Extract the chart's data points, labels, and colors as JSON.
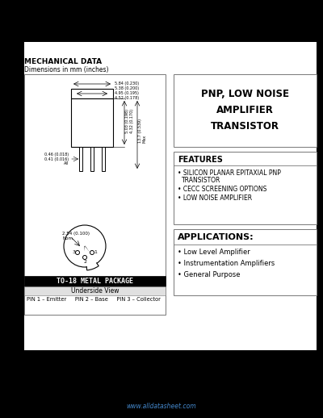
{
  "bg_color": "#000000",
  "page_bg": "#ffffff",
  "title": "PNP, LOW NOISE\nAMPLIFIER\nTRANSISTOR",
  "features_title": "FEATURES",
  "features": [
    "SILICON PLANAR EPITAXIAL PNP\n TRANSISTOR",
    "CECC SCREENING OPTIONS",
    "LOW NOISE AMPLIFIER"
  ],
  "applications_title": "APPLICATIONS:",
  "applications": [
    "Low Level Amplifier",
    "Instrumentation Amplifiers",
    "General Purpose"
  ],
  "mech_title": "MECHANICAL DATA",
  "mech_subtitle": "Dimensions in mm (inches)",
  "package_title": "TO-18 METAL PACKAGE",
  "package_sub": "Underside View",
  "pin_info": "PIN 1 – Emitter     PIN 2 – Base     PIN 3 – Collector",
  "footer": "www.alldatasheet.com"
}
